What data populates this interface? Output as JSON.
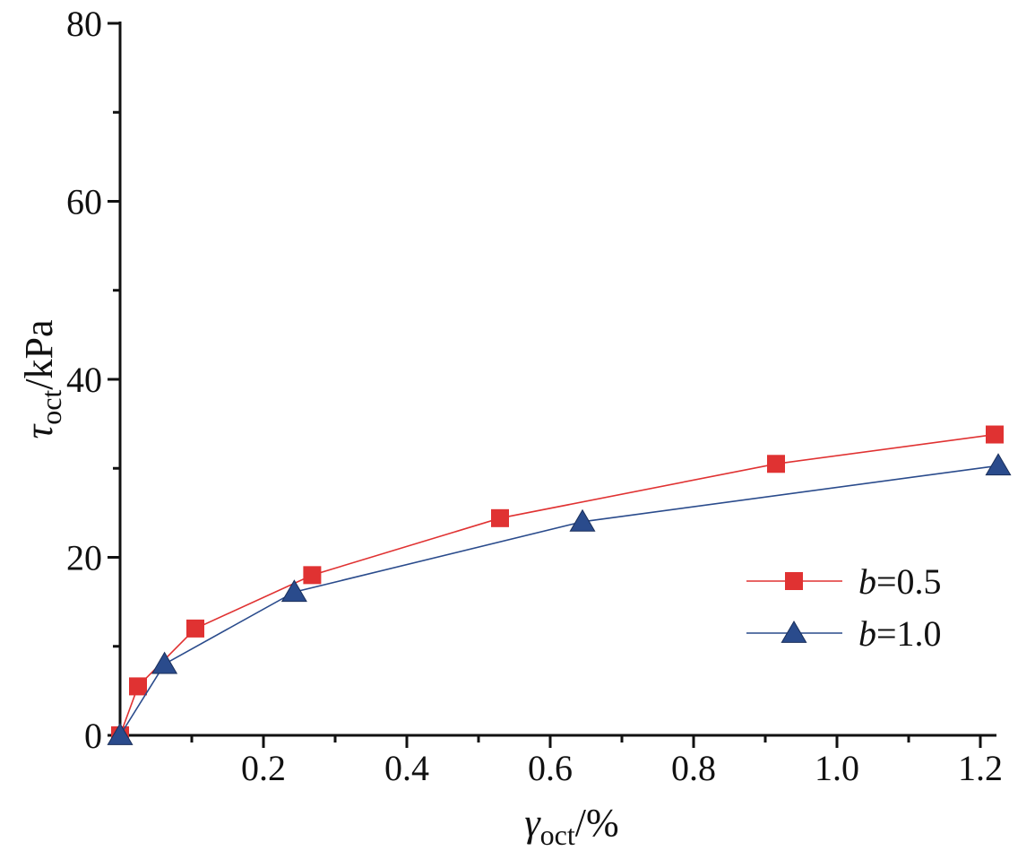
{
  "chart_data": {
    "type": "line",
    "xlabel": {
      "symbol": "γ",
      "subscript": "oct",
      "unit": "/%"
    },
    "ylabel": {
      "symbol": "τ",
      "subscript": "oct",
      "unit": "/kPa"
    },
    "xlim": [
      0,
      1.22
    ],
    "ylim": [
      0,
      80
    ],
    "xticks": [
      0.2,
      0.4,
      0.6,
      0.8,
      1.0,
      1.2
    ],
    "xtick_labels": [
      "0.2",
      "0.4",
      "0.6",
      "0.8",
      "1.0",
      "1.2"
    ],
    "yticks": [
      0,
      20,
      40,
      60,
      80
    ],
    "ytick_labels": [
      "0",
      "20",
      "40",
      "60",
      "80"
    ],
    "grid": false,
    "legend_position": "right-center",
    "series": [
      {
        "name": "b=0.5",
        "name_var": "b",
        "name_value": "=0.5",
        "marker": "square",
        "color": "#e03232",
        "x": [
          0.0,
          0.025,
          0.105,
          0.268,
          0.53,
          0.915,
          1.22
        ],
        "y": [
          0.0,
          5.5,
          12.0,
          18.0,
          24.4,
          30.5,
          33.8
        ]
      },
      {
        "name": "b=1.0",
        "name_var": "b",
        "name_value": "=1.0",
        "marker": "triangle",
        "color": "#2a4b8c",
        "x": [
          0.0,
          0.062,
          0.243,
          0.645,
          1.225
        ],
        "y": [
          0.0,
          8.0,
          16.1,
          24.0,
          30.3
        ]
      }
    ]
  }
}
